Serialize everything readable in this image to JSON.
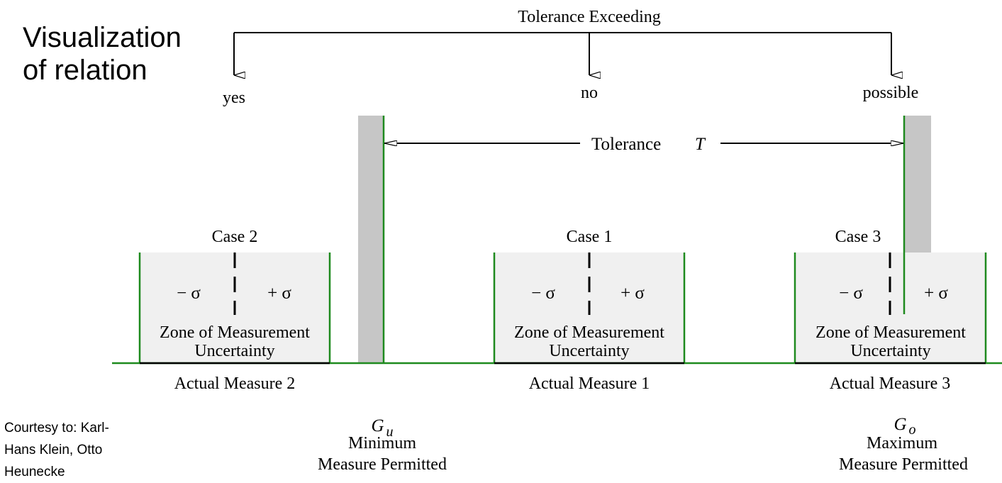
{
  "title_line1": "Visualization",
  "title_line2": "of relation",
  "courtesy": {
    "line1": "Courtesy to: Karl-",
    "line2": "Hans Klein, Otto",
    "line3": "Heunecke"
  },
  "tolerance_exceeding": {
    "label": "Tolerance Exceeding",
    "yes": "yes",
    "no": "no",
    "possible": "possible"
  },
  "tolerance": {
    "label": "Tolerance",
    "symbol": "T"
  },
  "cases": [
    {
      "name": "Case 2",
      "minus": "− σ",
      "plus": "+ σ",
      "zone_line1": "Zone of Measurement",
      "zone_line2": "Uncertainty",
      "actual": "Actual Measure 2"
    },
    {
      "name": "Case 1",
      "minus": "− σ",
      "plus": "+ σ",
      "zone_line1": "Zone of Measurement",
      "zone_line2": "Uncertainty",
      "actual": "Actual Measure 1"
    },
    {
      "name": "Case 3",
      "minus": "− σ",
      "plus": "+ σ",
      "zone_line1": "Zone of Measurement",
      "zone_line2": "Uncertainty",
      "actual": "Actual Measure 3"
    }
  ],
  "lower_limit": {
    "symbol": "G",
    "subscript": "u",
    "line1": "Minimum",
    "line2": "Measure Permitted"
  },
  "upper_limit": {
    "symbol": "G",
    "subscript": "o",
    "line1": "Maximum",
    "line2": "Measure Permitted"
  },
  "colors": {
    "limit_line": "#1e8a1e",
    "limit_band": "#c6c6c6",
    "zone_fill": "#f0f0f0",
    "ink": "#000000"
  }
}
